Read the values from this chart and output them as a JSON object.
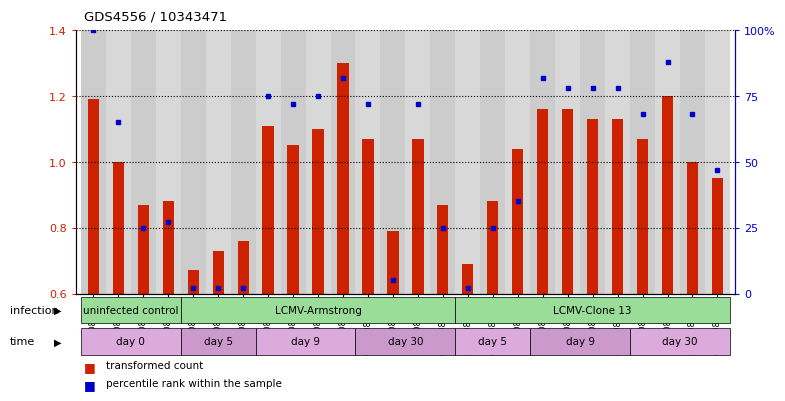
{
  "title": "GDS4556 / 10343471",
  "samples": [
    "GSM1083152",
    "GSM1083153",
    "GSM1083154",
    "GSM1083155",
    "GSM1083156",
    "GSM1083157",
    "GSM1083158",
    "GSM1083159",
    "GSM1083160",
    "GSM1083161",
    "GSM1083162",
    "GSM1083163",
    "GSM1083164",
    "GSM1083165",
    "GSM1083166",
    "GSM1083167",
    "GSM1083168",
    "GSM1083169",
    "GSM1083170",
    "GSM1083171",
    "GSM1083172",
    "GSM1083173",
    "GSM1083174",
    "GSM1083175",
    "GSM1083176",
    "GSM1083177"
  ],
  "red_values": [
    1.19,
    1.0,
    0.87,
    0.88,
    0.67,
    0.73,
    0.76,
    1.11,
    1.05,
    1.1,
    1.3,
    1.07,
    0.79,
    1.07,
    0.87,
    0.69,
    0.88,
    1.04,
    1.16,
    1.16,
    1.13,
    1.13,
    1.07,
    1.2,
    1.0,
    0.95
  ],
  "blue_values_pct": [
    100,
    65,
    25,
    27,
    2,
    2,
    2,
    75,
    72,
    75,
    82,
    72,
    5,
    72,
    25,
    2,
    25,
    35,
    82,
    78,
    78,
    78,
    68,
    88,
    68,
    47
  ],
  "ylim_left": [
    0.6,
    1.4
  ],
  "ylim_right": [
    0,
    100
  ],
  "yticks_left": [
    0.6,
    0.8,
    1.0,
    1.2,
    1.4
  ],
  "yticks_right": [
    0,
    25,
    50,
    75,
    100
  ],
  "ytick_labels_right": [
    "0",
    "25",
    "50",
    "75",
    "100%"
  ],
  "bar_color": "#cc2200",
  "dot_color": "#0000cc",
  "infection_groups": [
    {
      "label": "uninfected control",
      "start": 0,
      "end": 3,
      "color": "#99dd99"
    },
    {
      "label": "LCMV-Armstrong",
      "start": 4,
      "end": 14,
      "color": "#99dd99"
    },
    {
      "label": "LCMV-Clone 13",
      "start": 15,
      "end": 25,
      "color": "#99dd99"
    }
  ],
  "time_groups": [
    {
      "label": "day 0",
      "start": 0,
      "end": 3
    },
    {
      "label": "day 5",
      "start": 4,
      "end": 6
    },
    {
      "label": "day 9",
      "start": 7,
      "end": 10
    },
    {
      "label": "day 30",
      "start": 11,
      "end": 14
    },
    {
      "label": "day 5",
      "start": 15,
      "end": 17
    },
    {
      "label": "day 9",
      "start": 18,
      "end": 21
    },
    {
      "label": "day 30",
      "start": 22,
      "end": 25
    }
  ],
  "time_colors": [
    "#ddaadd",
    "#cc99cc",
    "#ddaadd",
    "#cc99cc",
    "#ddaadd",
    "#cc99cc",
    "#ddaadd"
  ],
  "legend_items": [
    {
      "label": "transformed count",
      "color": "#cc2200"
    },
    {
      "label": "percentile rank within the sample",
      "color": "#0000cc"
    }
  ]
}
